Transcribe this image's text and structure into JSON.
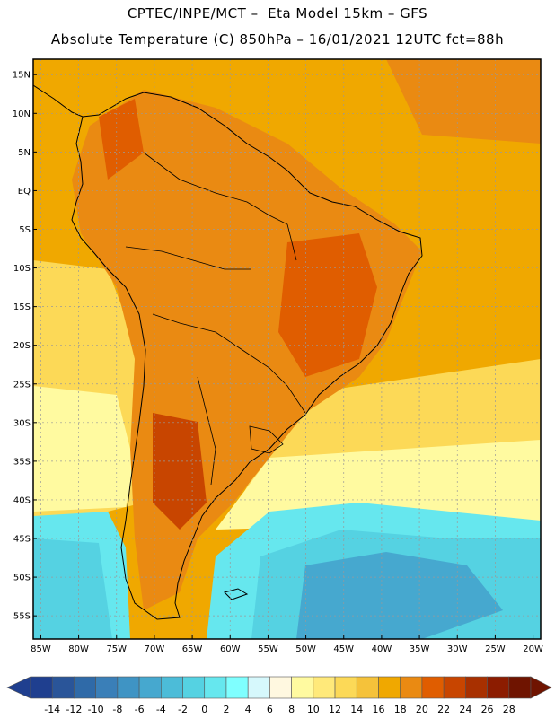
{
  "header": {
    "line1": "CPTEC/INPE/MCT –  Eta Model 15km – GFS",
    "line2": "Absolute Temperature (C) 850hPa – 16/01/2021 12UTC fct=88h"
  },
  "map": {
    "lat_labels": [
      "15N",
      "10N",
      "5N",
      "EQ",
      "5S",
      "10S",
      "15S",
      "20S",
      "25S",
      "30S",
      "35S",
      "40S",
      "45S",
      "50S",
      "55S"
    ],
    "lat_values": [
      15,
      10,
      5,
      0,
      -5,
      -10,
      -15,
      -20,
      -25,
      -30,
      -35,
      -40,
      -45,
      -50,
      -55
    ],
    "lon_labels": [
      "85W",
      "80W",
      "75W",
      "70W",
      "65W",
      "60W",
      "55W",
      "50W",
      "45W",
      "40W",
      "35W",
      "30W",
      "25W",
      "20W"
    ],
    "lon_values": [
      -85,
      -80,
      -75,
      -70,
      -65,
      -60,
      -55,
      -50,
      -45,
      -40,
      -35,
      -30,
      -25,
      -20
    ],
    "lat_range": [
      -58,
      17
    ],
    "lon_range": [
      -86,
      -19
    ]
  },
  "colorbar": {
    "labels": [
      "-14",
      "-12",
      "-10",
      "-8",
      "-6",
      "-4",
      "-2",
      "0",
      "2",
      "4",
      "6",
      "8",
      "10",
      "12",
      "14",
      "16",
      "18",
      "20",
      "22",
      "24",
      "26",
      "28"
    ],
    "colors": [
      "#1f3f8f",
      "#2a5599",
      "#2f6aa8",
      "#3a7fb8",
      "#3f94c4",
      "#46a8cf",
      "#4cbcd8",
      "#55d2e2",
      "#66e7ee",
      "#7fffff",
      "#d6f8fc",
      "#fff8e0",
      "#fffaa0",
      "#ffe97a",
      "#fcd957",
      "#f5c23a",
      "#f0a800",
      "#ea8a12",
      "#e05d00",
      "#c84500",
      "#a83000",
      "#8c1c00",
      "#6f1400"
    ]
  }
}
